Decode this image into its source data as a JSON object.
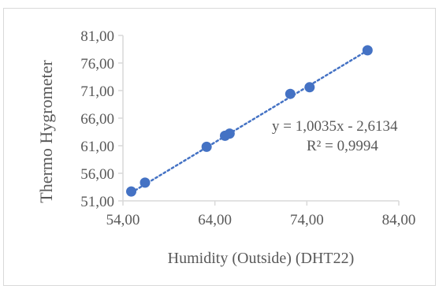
{
  "chart_data": {
    "type": "scatter",
    "title": "",
    "xlabel": "Humidity (Outside) (DHT22)",
    "ylabel": "Thermo Hygrometer",
    "xlim": [
      54,
      84
    ],
    "ylim": [
      51,
      81
    ],
    "x_ticks": [
      54,
      64,
      74,
      84
    ],
    "y_ticks": [
      51,
      56,
      61,
      66,
      71,
      76,
      81
    ],
    "x_tick_labels": [
      "54,00",
      "64,00",
      "74,00",
      "84,00"
    ],
    "y_tick_labels": [
      "51,00",
      "56,00",
      "61,00",
      "66,00",
      "71,00",
      "76,00",
      "81,00"
    ],
    "grid": false,
    "legend": "none",
    "series": [
      {
        "x": [
          54.9,
          56.4,
          63.1,
          65.1,
          65.6,
          72.2,
          74.3,
          80.6
        ],
        "y": [
          52.7,
          54.3,
          60.8,
          62.8,
          63.2,
          70.4,
          71.6,
          78.3
        ]
      }
    ],
    "trendline": {
      "type": "linear",
      "slope": 1.0035,
      "intercept": -2.6134,
      "equation_label": "y = 1,0035x - 2,6134",
      "r2_label": "R² = 0,9994"
    },
    "colors": {
      "marker": "#4472c4",
      "trendline": "#4472c4",
      "axis": "#d9d9d9",
      "text": "#595959"
    }
  }
}
